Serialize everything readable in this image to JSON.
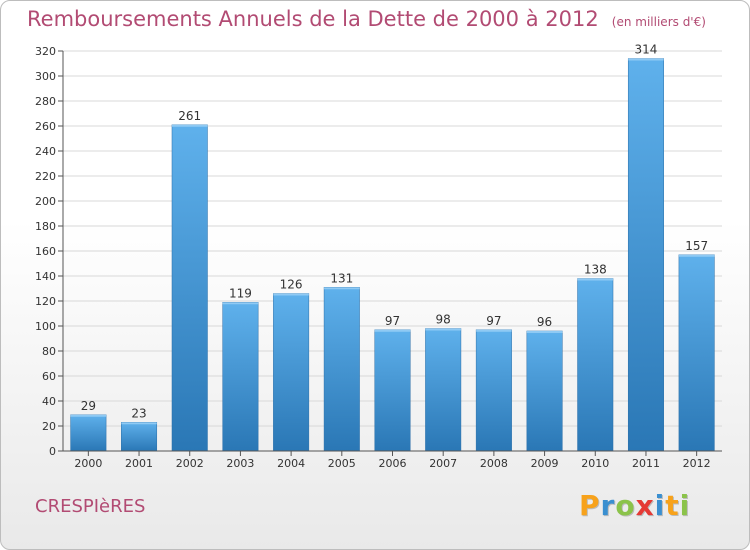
{
  "header": {
    "title": "Remboursements Annuels de la Dette de 2000 à 2012",
    "unit": "(en milliers d'€)"
  },
  "footer": {
    "commune": "CRESPIèRES",
    "logo": {
      "letters": [
        "P",
        "r",
        "o",
        "x",
        "i",
        "t",
        "i"
      ],
      "colors": [
        "#f7a21b",
        "#3a8fd0",
        "#8bc34a",
        "#e53935",
        "#3a8fd0",
        "#f7a21b",
        "#8bc34a"
      ]
    }
  },
  "colors": {
    "bar_light": "#5fb1ec",
    "bar_dark": "#2a77b5",
    "title": "#b24b73",
    "grid": "#d8d8d8"
  },
  "chart_data": {
    "type": "bar",
    "title": "Remboursements Annuels de la Dette de 2000 à 2012",
    "categories": [
      "2000",
      "2001",
      "2002",
      "2003",
      "2004",
      "2005",
      "2006",
      "2007",
      "2008",
      "2009",
      "2010",
      "2011",
      "2012"
    ],
    "values": [
      29,
      23,
      261,
      119,
      126,
      131,
      97,
      98,
      97,
      96,
      138,
      314,
      157
    ],
    "ylim": [
      0,
      320
    ],
    "yticks": [
      0,
      20,
      40,
      60,
      80,
      100,
      120,
      140,
      160,
      180,
      200,
      220,
      240,
      260,
      280,
      300,
      320
    ],
    "grid": true,
    "legend": "none"
  }
}
